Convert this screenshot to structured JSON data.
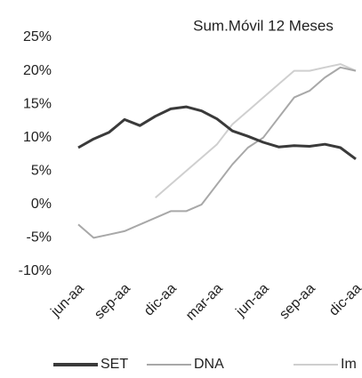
{
  "chart_data": {
    "type": "line",
    "title": "Sum.Móvil 12 Meses",
    "categories": [
      "jun-aa",
      null,
      null,
      "sep-aa",
      null,
      null,
      "dic-aa",
      null,
      null,
      "mar-aa",
      null,
      null,
      "jun-aa",
      null,
      null,
      "sep-aa",
      null,
      null,
      "dic-aa"
    ],
    "series": [
      {
        "name": "SET",
        "color": "#3a3a3a",
        "values": [
          8.5,
          9.8,
          10.8,
          12.7,
          11.8,
          13.2,
          14.3,
          14.6,
          14,
          12.8,
          11,
          10.2,
          9.3,
          8.6,
          8.8,
          8.7,
          9,
          8.5,
          6.8
        ]
      },
      {
        "name": "DNA",
        "color": "#a8a8a8",
        "values": [
          -3,
          -5,
          -4.5,
          -4,
          -3,
          -2,
          -1,
          -1,
          0,
          3,
          6,
          8.5,
          10,
          13,
          16,
          17,
          19,
          20.5,
          20
        ]
      },
      {
        "name": "Im",
        "color": "#cfcfcf",
        "values": [
          null,
          null,
          null,
          null,
          null,
          1,
          3,
          5,
          7,
          9,
          12,
          14,
          16,
          18,
          20,
          20,
          20.5,
          21,
          20
        ]
      }
    ],
    "ylim": [
      -10,
      25
    ],
    "yticks": [
      {
        "value": -10,
        "label": "-10%"
      },
      {
        "value": -5,
        "label": "-5%"
      },
      {
        "value": 0,
        "label": "0%"
      },
      {
        "value": 5,
        "label": "5%"
      },
      {
        "value": 10,
        "label": "10%"
      },
      {
        "value": 15,
        "label": "15%"
      },
      {
        "value": 20,
        "label": "20%"
      },
      {
        "value": 25,
        "label": "25%"
      }
    ],
    "grid": false,
    "legend": "bottom"
  }
}
